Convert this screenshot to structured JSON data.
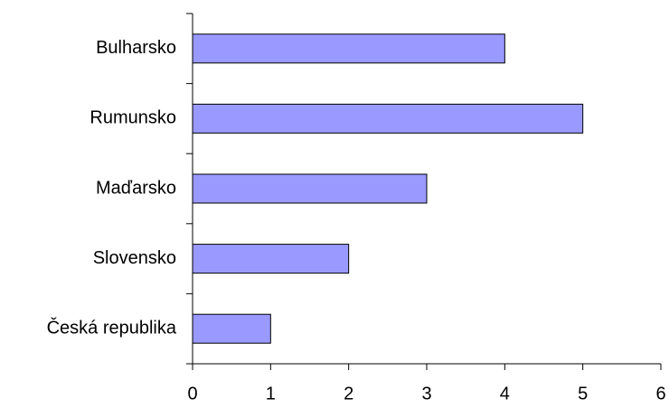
{
  "chart_data": {
    "type": "bar",
    "orientation": "horizontal",
    "categories": [
      "Bulharsko",
      "Rumunsko",
      "Maďarsko",
      "Slovensko",
      "Česká republika"
    ],
    "values": [
      4,
      5,
      3,
      2,
      1
    ],
    "color": "#9999ff",
    "xlim": [
      0,
      6
    ],
    "xticks": [
      0,
      1,
      2,
      3,
      4,
      5,
      6
    ],
    "grid": false
  }
}
